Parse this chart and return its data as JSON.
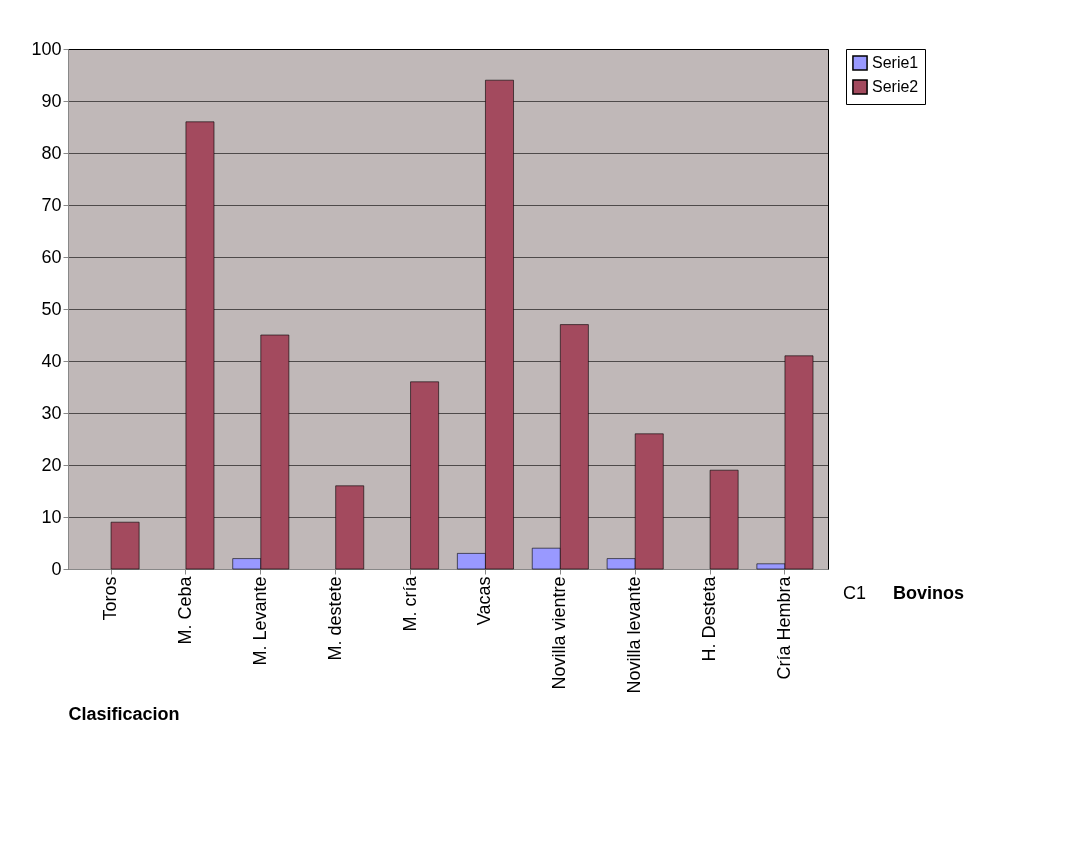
{
  "chart_data": {
    "type": "bar",
    "xlabel": "Clasificacion",
    "categories": [
      "Toros",
      "M. Ceba",
      "M. Levante",
      "M. destete",
      "M. cría",
      "Vacas",
      "Novilla vientre",
      "Novilla levante",
      "H. Desteta",
      "Cría Hembra"
    ],
    "series": [
      {
        "name": "Serie1",
        "color": "#9999ff",
        "values": [
          null,
          null,
          2,
          null,
          null,
          3,
          4,
          2,
          null,
          1
        ]
      },
      {
        "name": "Serie2",
        "color": "#a34a5e",
        "values": [
          9,
          86,
          45,
          16,
          36,
          94,
          47,
          26,
          19,
          41
        ]
      }
    ],
    "ylim": [
      0,
      100
    ],
    "yticks": [
      0,
      10,
      20,
      30,
      40,
      50,
      60,
      70,
      80,
      90,
      100
    ],
    "grid": "y",
    "legend": "right",
    "annotations": [
      "C1",
      "Bovinos"
    ]
  }
}
